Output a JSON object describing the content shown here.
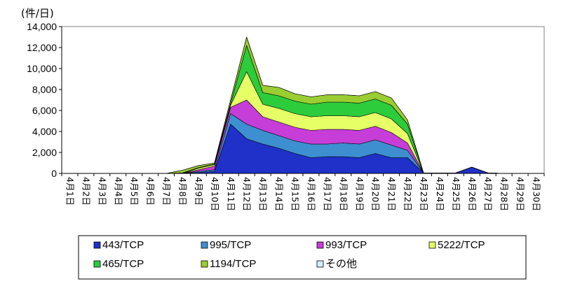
{
  "chart_data": {
    "type": "area",
    "stacked": true,
    "unit_label": "(件/日)",
    "title": "",
    "xlabel": "",
    "ylabel": "",
    "ylim": [
      0,
      14000
    ],
    "y_ticks": [
      "0",
      "2,000",
      "4,000",
      "6,000",
      "8,000",
      "10,000",
      "12,000",
      "14,000"
    ],
    "y_tick_values": [
      0,
      2000,
      4000,
      6000,
      8000,
      10000,
      12000,
      14000
    ],
    "grid": false,
    "legend_position": "bottom",
    "categories": [
      "4月1日",
      "4月2日",
      "4月3日",
      "4月4日",
      "4月5日",
      "4月6日",
      "4月7日",
      "4月8日",
      "4月9日",
      "4月10日",
      "4月11日",
      "4月12日",
      "4月13日",
      "4月14日",
      "4月15日",
      "4月16日",
      "4月17日",
      "4月18日",
      "4月19日",
      "4月20日",
      "4月21日",
      "4月22日",
      "4月23日",
      "4月24日",
      "4月25日",
      "4月26日",
      "4月27日",
      "4月28日",
      "4月29日",
      "4月30日"
    ],
    "series": [
      {
        "name": "443/TCP",
        "color": "#1f31c8",
        "values": [
          0,
          0,
          0,
          0,
          0,
          0,
          0,
          0,
          100,
          200,
          4700,
          3300,
          2800,
          2400,
          1900,
          1500,
          1600,
          1600,
          1500,
          1900,
          1500,
          1500,
          50,
          50,
          50,
          600,
          50,
          0,
          0,
          0
        ]
      },
      {
        "name": "995/TCP",
        "color": "#3d8fd0",
        "values": [
          0,
          0,
          0,
          0,
          0,
          0,
          0,
          0,
          100,
          150,
          1000,
          1400,
          1300,
          1200,
          1200,
          1300,
          1200,
          1300,
          1300,
          1300,
          1200,
          700,
          0,
          0,
          0,
          0,
          0,
          0,
          0,
          0
        ]
      },
      {
        "name": "993/TCP",
        "color": "#c63dd8",
        "values": [
          0,
          0,
          0,
          0,
          0,
          0,
          0,
          0,
          150,
          350,
          600,
          2300,
          1300,
          1300,
          1300,
          1300,
          1400,
          1300,
          1300,
          1300,
          1200,
          700,
          0,
          0,
          0,
          0,
          0,
          0,
          0,
          0
        ]
      },
      {
        "name": "5222/TCP",
        "color": "#e6ff66",
        "values": [
          0,
          0,
          0,
          0,
          0,
          0,
          0,
          0,
          150,
          150,
          200,
          2700,
          1200,
          1300,
          1300,
          1300,
          1300,
          1300,
          1300,
          1300,
          1300,
          900,
          0,
          0,
          0,
          0,
          0,
          0,
          0,
          0
        ]
      },
      {
        "name": "465/TCP",
        "color": "#2ccc3c",
        "values": [
          0,
          0,
          0,
          0,
          0,
          0,
          0,
          50,
          50,
          50,
          150,
          2500,
          1100,
          1200,
          1200,
          1200,
          1300,
          1300,
          1300,
          1300,
          1300,
          900,
          0,
          0,
          0,
          0,
          0,
          0,
          0,
          0
        ]
      },
      {
        "name": "1194/TCP",
        "color": "#9acd32",
        "values": [
          0,
          0,
          0,
          0,
          0,
          0,
          0,
          250,
          200,
          100,
          350,
          800,
          700,
          800,
          700,
          700,
          700,
          700,
          700,
          700,
          700,
          400,
          0,
          0,
          0,
          0,
          0,
          0,
          0,
          0
        ]
      },
      {
        "name": "その他",
        "color": "#cfeef9",
        "values": [
          0,
          0,
          0,
          0,
          0,
          0,
          0,
          0,
          0,
          0,
          0,
          0,
          0,
          0,
          0,
          0,
          0,
          0,
          0,
          0,
          0,
          0,
          0,
          0,
          0,
          0,
          0,
          0,
          0,
          0
        ]
      }
    ]
  }
}
